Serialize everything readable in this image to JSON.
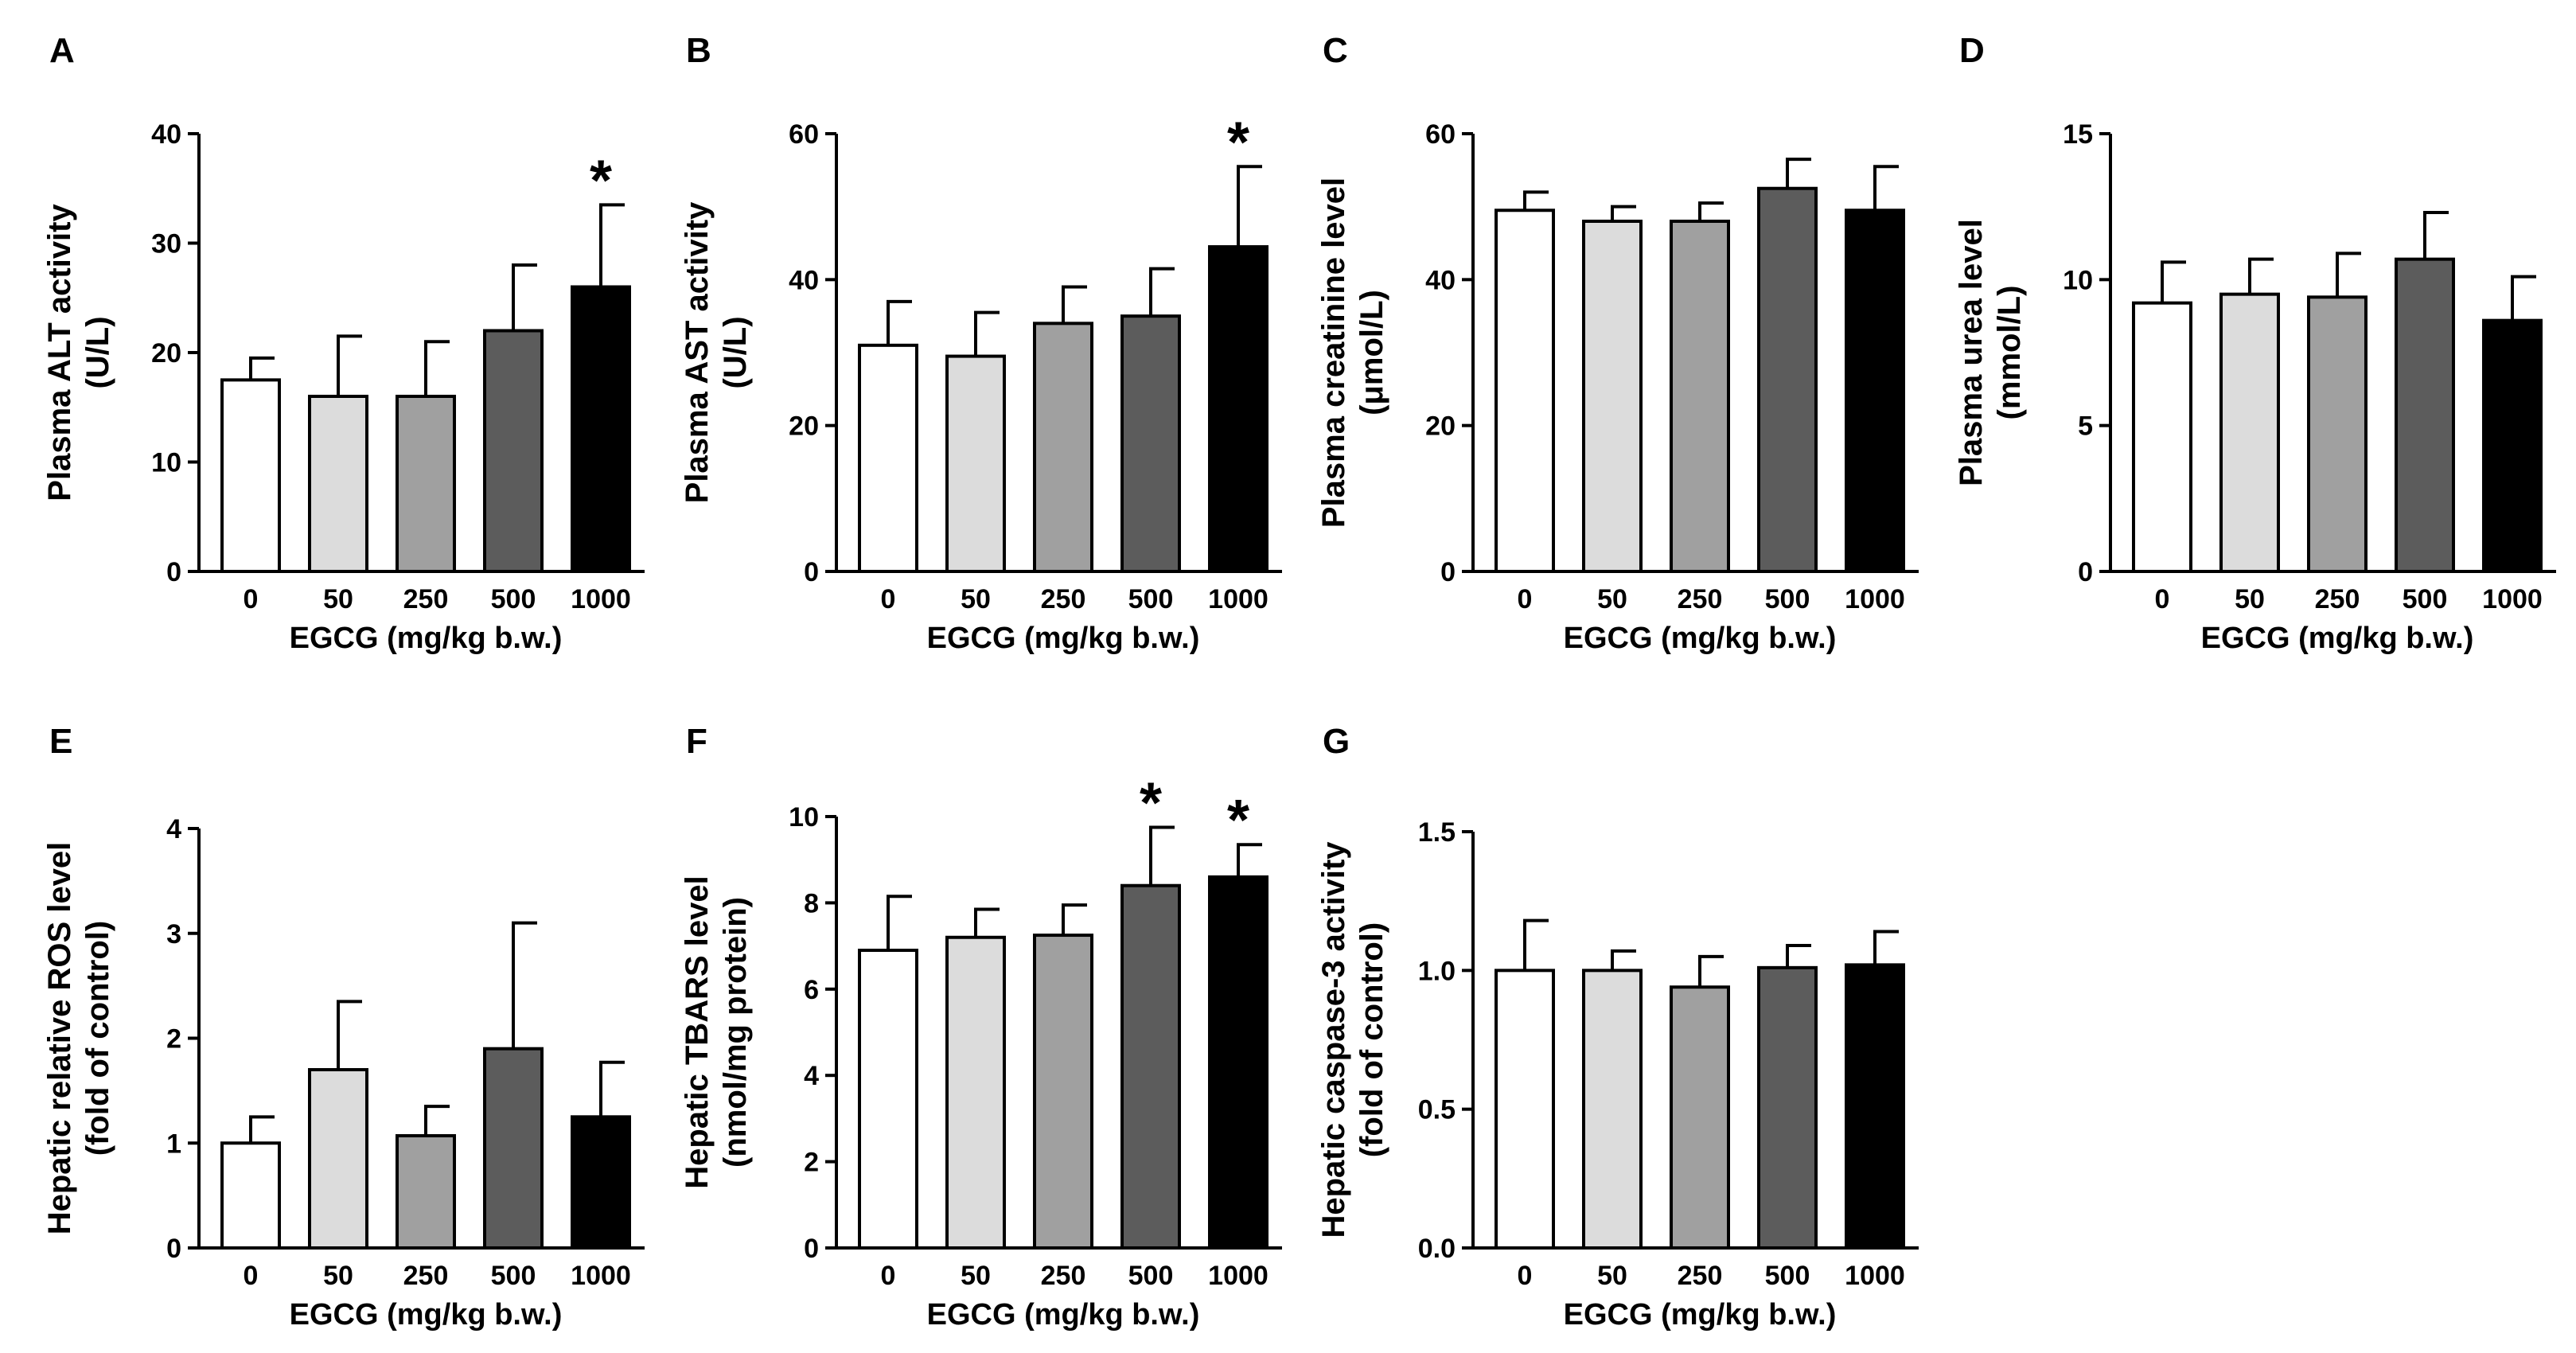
{
  "chart_data": [
    {
      "type": "bar",
      "panel": "A",
      "ylabel_lines": [
        "Plasma ALT activity",
        "(U/L)"
      ],
      "xlabel": "EGCG (mg/kg b.w.)",
      "categories": [
        "0",
        "50",
        "250",
        "500",
        "1000"
      ],
      "values": [
        17.5,
        16,
        16,
        22,
        26
      ],
      "errors": [
        2,
        5.5,
        5,
        6,
        7.5
      ],
      "significant": [
        false,
        false,
        false,
        false,
        true
      ],
      "ylim": [
        0,
        40
      ],
      "yticks": [
        "0",
        "10",
        "20",
        "30",
        "40"
      ]
    },
    {
      "type": "bar",
      "panel": "B",
      "ylabel_lines": [
        "Plasma AST activity",
        "(U/L)"
      ],
      "xlabel": "EGCG (mg/kg b.w.)",
      "categories": [
        "0",
        "50",
        "250",
        "500",
        "1000"
      ],
      "values": [
        31,
        29.5,
        34,
        35,
        44.5
      ],
      "errors": [
        6,
        6,
        5,
        6.5,
        11
      ],
      "significant": [
        false,
        false,
        false,
        false,
        true
      ],
      "ylim": [
        0,
        60
      ],
      "yticks": [
        "0",
        "20",
        "40",
        "60"
      ]
    },
    {
      "type": "bar",
      "panel": "C",
      "ylabel_lines": [
        "Plasma creatinine level",
        "(μmol/L)"
      ],
      "xlabel": "EGCG (mg/kg b.w.)",
      "categories": [
        "0",
        "50",
        "250",
        "500",
        "1000"
      ],
      "values": [
        49.5,
        48,
        48,
        52.5,
        49.5
      ],
      "errors": [
        2.5,
        2,
        2.5,
        4,
        6
      ],
      "significant": [
        false,
        false,
        false,
        false,
        false
      ],
      "ylim": [
        0,
        60
      ],
      "yticks": [
        "0",
        "20",
        "40",
        "60"
      ]
    },
    {
      "type": "bar",
      "panel": "D",
      "ylabel_lines": [
        "Plasma urea level",
        "(mmol/L)"
      ],
      "xlabel": "EGCG (mg/kg b.w.)",
      "categories": [
        "0",
        "50",
        "250",
        "500",
        "1000"
      ],
      "values": [
        9.2,
        9.5,
        9.4,
        10.7,
        8.6
      ],
      "errors": [
        1.4,
        1.2,
        1.5,
        1.6,
        1.5
      ],
      "significant": [
        false,
        false,
        false,
        false,
        false
      ],
      "ylim": [
        0,
        15
      ],
      "yticks": [
        "0",
        "5",
        "10",
        "15"
      ]
    },
    {
      "type": "bar",
      "panel": "E",
      "ylabel_lines": [
        "Hepatic relative ROS level",
        "(fold of control)"
      ],
      "xlabel": "EGCG (mg/kg b.w.)",
      "categories": [
        "0",
        "50",
        "250",
        "500",
        "1000"
      ],
      "values": [
        1.0,
        1.7,
        1.07,
        1.9,
        1.25
      ],
      "errors": [
        0.25,
        0.65,
        0.28,
        1.2,
        0.52
      ],
      "significant": [
        false,
        false,
        false,
        false,
        false
      ],
      "ylim": [
        0,
        4
      ],
      "yticks": [
        "0",
        "1",
        "2",
        "3",
        "4"
      ]
    },
    {
      "type": "bar",
      "panel": "F",
      "ylabel_lines": [
        "Hepatic TBARS level",
        "(nmol/mg protein)"
      ],
      "xlabel": "EGCG (mg/kg b.w.)",
      "categories": [
        "0",
        "50",
        "250",
        "500",
        "1000"
      ],
      "values": [
        6.9,
        7.2,
        7.25,
        8.4,
        8.6
      ],
      "errors": [
        1.25,
        0.65,
        0.7,
        1.35,
        0.75
      ],
      "significant": [
        false,
        false,
        false,
        true,
        true
      ],
      "ylim": [
        0,
        10
      ],
      "yticks": [
        "0",
        "2",
        "4",
        "6",
        "8",
        "10"
      ]
    },
    {
      "type": "bar",
      "panel": "G",
      "ylabel_lines": [
        "Hepatic caspase-3 activity",
        "(fold of control)"
      ],
      "xlabel": "EGCG (mg/kg b.w.)",
      "categories": [
        "0",
        "50",
        "250",
        "500",
        "1000"
      ],
      "values": [
        1.0,
        1.0,
        0.94,
        1.01,
        1.02
      ],
      "errors": [
        0.18,
        0.07,
        0.11,
        0.08,
        0.12
      ],
      "significant": [
        false,
        false,
        false,
        false,
        false
      ],
      "ylim": [
        0,
        1.5
      ],
      "yticks": [
        "0.0",
        "0.5",
        "1.0",
        "1.5"
      ]
    }
  ],
  "bar_fills": [
    "#ffffff",
    "#dcdcdc",
    "#a0a0a0",
    "#5c5c5c",
    "#000000"
  ],
  "significance_marker": "*"
}
